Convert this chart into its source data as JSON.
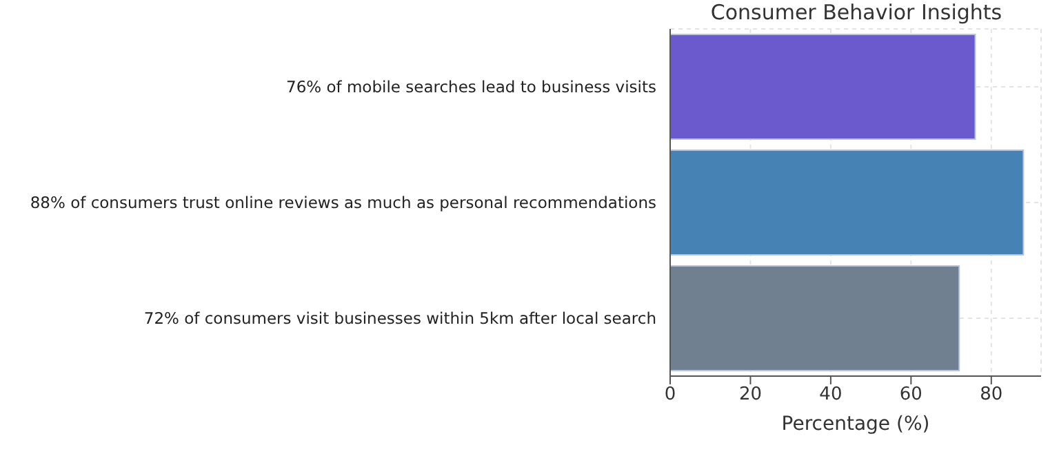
{
  "chart_data": {
    "type": "bar",
    "orientation": "horizontal",
    "title": "Consumer Behavior Insights",
    "xlabel": "Percentage (%)",
    "categories": [
      "76% of mobile searches lead to business visits",
      "88% of consumers trust online reviews as much as personal recommendations",
      "72% of consumers visit businesses within 5km after local search"
    ],
    "values": [
      76,
      88,
      72
    ],
    "colors": [
      "#6a5acd",
      "#4682b4",
      "#708090"
    ],
    "xlim": [
      0,
      92.4
    ],
    "xticks": [
      0,
      20,
      40,
      60,
      80
    ],
    "grid": true,
    "legend": false
  }
}
